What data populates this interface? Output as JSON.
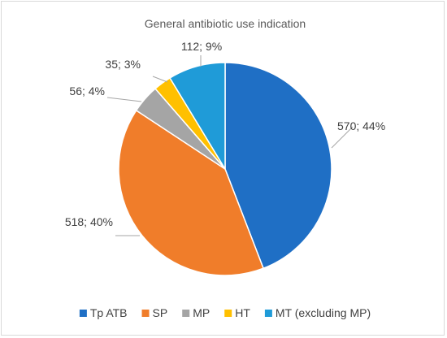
{
  "chart_data": {
    "type": "pie",
    "title": "General antibiotic use indication",
    "slices": [
      {
        "name": "Tp ATB",
        "value": 570,
        "percent": 44,
        "label": "570; 44%",
        "color": "#1F6FC5"
      },
      {
        "name": "SP",
        "value": 518,
        "percent": 40,
        "label": "518; 40%",
        "color": "#F07D2A"
      },
      {
        "name": "MP",
        "value": 56,
        "percent": 4,
        "label": "56; 4%",
        "color": "#A5A5A5"
      },
      {
        "name": "HT",
        "value": 35,
        "percent": 3,
        "label": "35; 3%",
        "color": "#FFC000"
      },
      {
        "name": "MT (excluding MP)",
        "value": 112,
        "percent": 9,
        "label": "112; 9%",
        "color": "#1F9BD8"
      }
    ],
    "legend_position": "bottom",
    "start_angle": "12 o'clock",
    "direction": "clockwise"
  }
}
